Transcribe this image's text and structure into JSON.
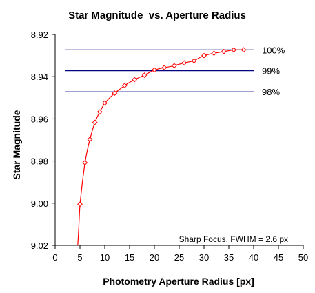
{
  "chart_data": {
    "type": "line",
    "title": "Star Magnitude  vs. Aperture Radius",
    "xlabel": "Photometry Aperture Radius [px]",
    "ylabel": "Star Magnitude",
    "xlim": [
      0,
      50
    ],
    "ylim": [
      9.02,
      8.92
    ],
    "y_inverted": true,
    "grid": false,
    "x_ticks": [
      "0",
      "5",
      "10",
      "15",
      "20",
      "25",
      "30",
      "35",
      "40",
      "45",
      "50"
    ],
    "y_ticks": [
      "8.92",
      "8.94",
      "8.96",
      "8.98",
      "9.00",
      "9.02"
    ],
    "series": [
      {
        "color": "#ff0000",
        "marker": "diamond",
        "x": [
          5,
          6,
          7,
          8,
          9,
          10,
          12,
          14,
          16,
          18,
          20,
          22,
          24,
          26,
          28,
          30,
          32,
          34,
          36,
          38
        ],
        "y": [
          9.0005,
          8.9808,
          8.9697,
          8.9617,
          8.9567,
          8.9525,
          8.9478,
          8.9442,
          8.9414,
          8.9393,
          8.9368,
          8.9357,
          8.9348,
          8.9335,
          8.9325,
          8.93,
          8.9289,
          8.9281,
          8.9273,
          8.9273
        ],
        "curve_x": [
          5,
          5.5,
          6,
          6.5,
          7,
          7.5,
          8,
          8.5,
          9,
          9.5,
          10,
          11,
          12,
          13,
          14,
          15,
          16,
          17,
          18,
          19,
          20,
          21,
          22,
          23,
          24,
          25,
          26,
          27,
          28,
          29,
          30,
          31,
          32,
          33,
          34,
          35,
          36,
          37,
          38
        ],
        "curve_y": [
          9.0005,
          8.9898,
          8.9808,
          8.9746,
          8.9697,
          8.9654,
          8.9617,
          8.959,
          8.9567,
          8.9545,
          8.9525,
          8.95,
          8.9478,
          8.946,
          8.9442,
          8.9427,
          8.9414,
          8.9403,
          8.9393,
          8.938,
          8.9368,
          8.9362,
          8.9357,
          8.9353,
          8.9348,
          8.9341,
          8.9335,
          8.933,
          8.9325,
          8.9311,
          8.93,
          8.9294,
          8.9289,
          8.9285,
          8.9281,
          8.9277,
          8.9273,
          8.9273,
          8.9273
        ],
        "lower_tail_x": [
          4.55,
          4.65,
          4.75,
          4.85,
          4.95,
          5.0
        ],
        "lower_tail_y": [
          9.02,
          9.0165,
          9.012,
          9.007,
          9.0025,
          9.0005
        ]
      }
    ],
    "reference_lines": [
      {
        "label": "100%",
        "y": 8.9273,
        "x_start": 2,
        "x_end": 40,
        "color": "#000080"
      },
      {
        "label": "99%",
        "y": 8.9372,
        "x_start": 2,
        "x_end": 40,
        "color": "#000080"
      },
      {
        "label": "98%",
        "y": 8.9472,
        "x_start": 2,
        "x_end": 40,
        "color": "#000080"
      }
    ],
    "annotation": "Sharp Focus, FWHM = 2.6 px"
  }
}
